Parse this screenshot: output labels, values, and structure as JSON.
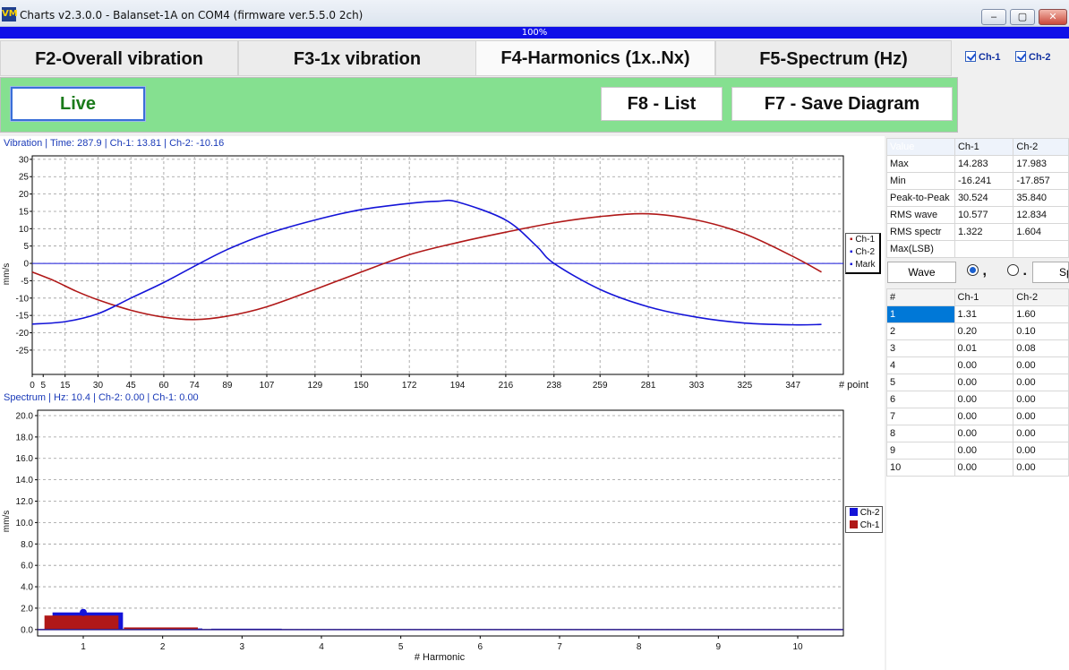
{
  "window": {
    "title": "Charts v2.3.0.0 - Balanset-1A on COM4 (firmware ver.5.5.0 2ch)",
    "icon": "VM",
    "progress_label": "100%",
    "minimize": "‒",
    "maximize": "▢",
    "close": "✕"
  },
  "tabs": [
    {
      "label": "F2-Overall vibration"
    },
    {
      "label": "F3-1x vibration"
    },
    {
      "label": "F4-Harmonics (1x..Nx)"
    },
    {
      "label": "F5-Spectrum (Hz)"
    }
  ],
  "channels": {
    "ch1": "Ch-1",
    "ch2": "Ch-2"
  },
  "toolbar": {
    "live": "Live",
    "list": "F8 - List",
    "save": "F7 - Save Diagram"
  },
  "colors": {
    "ch1": "#b01818",
    "ch2": "#1414d8",
    "mark": "#1414d8",
    "toolbar_bg": "#85e090"
  },
  "wave_chart": {
    "header": "Vibration | Time: 287.9 | Ch-1: 13.81 | Ch-2: -10.16",
    "ylabel": "mm/s",
    "xlabel": "# point",
    "yticks": [
      30,
      25,
      20,
      15,
      10,
      5,
      0,
      -5,
      -10,
      -15,
      -20,
      -25
    ],
    "ylim": [
      -32,
      31
    ],
    "xlim": [
      0,
      370
    ],
    "xticks": [
      0,
      5,
      15,
      30,
      45,
      60,
      74,
      89,
      107,
      129,
      150,
      172,
      194,
      216,
      238,
      259,
      281,
      303,
      325,
      347
    ],
    "legend": [
      "Ch-1",
      "Ch-2",
      "Mark"
    ],
    "series": [
      {
        "name": "Ch-1",
        "points": [
          [
            0,
            -2.5
          ],
          [
            10,
            -5
          ],
          [
            20,
            -8
          ],
          [
            30,
            -10.5
          ],
          [
            45,
            -13.5
          ],
          [
            60,
            -15.5
          ],
          [
            74,
            -16.2
          ],
          [
            89,
            -15.2
          ],
          [
            107,
            -12.5
          ],
          [
            129,
            -7.5
          ],
          [
            150,
            -2.5
          ],
          [
            172,
            2.5
          ],
          [
            194,
            6
          ],
          [
            216,
            9
          ],
          [
            238,
            11.7
          ],
          [
            259,
            13.5
          ],
          [
            281,
            14.3
          ],
          [
            303,
            12.5
          ],
          [
            325,
            8.5
          ],
          [
            347,
            2
          ],
          [
            360,
            -2.5
          ]
        ]
      },
      {
        "name": "Ch-2",
        "points": [
          [
            0,
            -17.5
          ],
          [
            15,
            -16.8
          ],
          [
            30,
            -14.5
          ],
          [
            45,
            -10
          ],
          [
            60,
            -5.5
          ],
          [
            74,
            -0.8
          ],
          [
            89,
            4
          ],
          [
            107,
            8.5
          ],
          [
            129,
            12.5
          ],
          [
            150,
            15.5
          ],
          [
            172,
            17.3
          ],
          [
            185,
            17.9
          ],
          [
            194,
            17.7
          ],
          [
            216,
            12.5
          ],
          [
            230,
            5
          ],
          [
            238,
            0
          ],
          [
            259,
            -7.5
          ],
          [
            281,
            -12.5
          ],
          [
            303,
            -15.5
          ],
          [
            325,
            -17.2
          ],
          [
            347,
            -17.7
          ],
          [
            360,
            -17.6
          ]
        ]
      }
    ],
    "mark_value": 0
  },
  "spectrum_chart": {
    "header": "Spectrum | Hz: 10.4 | Ch-2: 0.00 | Ch-1: 0.00",
    "ylabel": "mm/s",
    "xlabel": "# Harmonic",
    "yticks": [
      20,
      18,
      16,
      14,
      12,
      10,
      8,
      6,
      4,
      2,
      0
    ],
    "ytick_labels": [
      "20.0",
      "18.0",
      "16.0",
      "14.0",
      "12.0",
      "10.0",
      "8.0",
      "6.0",
      "4.0",
      "2.0",
      "0.0"
    ],
    "ylim": [
      -0.6,
      20.5
    ],
    "xticks": [
      "1",
      "2",
      "3",
      "4",
      "5",
      "6",
      "7",
      "8",
      "9",
      "10"
    ],
    "legend": [
      "Ch-2",
      "Ch-1"
    ],
    "ch2": [
      1.6,
      0.1,
      0.08,
      0,
      0,
      0,
      0,
      0,
      0,
      0
    ],
    "ch1": [
      1.31,
      0.2,
      0.01,
      0,
      0,
      0,
      0,
      0,
      0,
      0
    ],
    "marker_value": 1.6
  },
  "stats": {
    "headers": [
      "Value",
      "Ch-1",
      "Ch-2"
    ],
    "rows": [
      [
        "Max",
        "14.283",
        "17.983"
      ],
      [
        "Min",
        "-16.241",
        "-17.857"
      ],
      [
        "Peak-to-Peak",
        "30.524",
        "35.840"
      ],
      [
        "RMS wave",
        "10.577",
        "12.834"
      ],
      [
        "RMS spectr",
        "1.322",
        "1.604"
      ],
      [
        "Max(LSB)",
        "",
        ""
      ]
    ]
  },
  "options": {
    "wave": "Wave",
    "comma": ",",
    "dot": ".",
    "sp": "Sp"
  },
  "harmonics": {
    "headers": [
      "#",
      "Ch-1",
      "Ch-2"
    ],
    "rows": [
      [
        "1",
        "1.31",
        "1.60"
      ],
      [
        "2",
        "0.20",
        "0.10"
      ],
      [
        "3",
        "0.01",
        "0.08"
      ],
      [
        "4",
        "0.00",
        "0.00"
      ],
      [
        "5",
        "0.00",
        "0.00"
      ],
      [
        "6",
        "0.00",
        "0.00"
      ],
      [
        "7",
        "0.00",
        "0.00"
      ],
      [
        "8",
        "0.00",
        "0.00"
      ],
      [
        "9",
        "0.00",
        "0.00"
      ],
      [
        "10",
        "0.00",
        "0.00"
      ]
    ]
  }
}
